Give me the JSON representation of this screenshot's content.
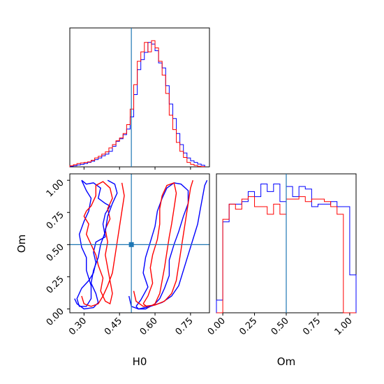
{
  "colors": {
    "series_a": "#0000ff",
    "series_b": "#ff0000",
    "truth": "#1f77b4",
    "axes": "#000000"
  },
  "chart_data": [
    {
      "type": "histogram",
      "panel": "top-left",
      "parameter": "H0",
      "xlim": [
        0.24,
        0.83
      ],
      "truth": 0.5,
      "show_y_ticks": false,
      "x_ticks_labeled": false,
      "bin_edges": [
        0.24,
        0.255,
        0.27,
        0.285,
        0.3,
        0.315,
        0.33,
        0.345,
        0.36,
        0.375,
        0.39,
        0.405,
        0.42,
        0.435,
        0.45,
        0.465,
        0.48,
        0.495,
        0.51,
        0.525,
        0.54,
        0.555,
        0.57,
        0.585,
        0.6,
        0.615,
        0.63,
        0.645,
        0.66,
        0.675,
        0.69,
        0.705,
        0.72,
        0.735,
        0.75,
        0.765,
        0.78,
        0.795,
        0.81
      ],
      "series": [
        {
          "color": "blue",
          "values": [
            0.2,
            0.4,
            0.7,
            0.9,
            1.2,
            1.6,
            2.0,
            2.6,
            3.2,
            4.0,
            4.6,
            5.6,
            7.4,
            9.2,
            10.1,
            11.6,
            13.6,
            18.0,
            26.0,
            35.0,
            38.6,
            41.2,
            44.8,
            44.2,
            41.8,
            37.4,
            35.6,
            29.2,
            22.6,
            17.4,
            12.0,
            8.0,
            5.0,
            3.2,
            2.2,
            1.6,
            1.0,
            0.6
          ]
        },
        {
          "color": "red",
          "values": [
            0.4,
            0.8,
            1.2,
            1.4,
            1.6,
            1.8,
            2.4,
            3.2,
            3.8,
            4.6,
            5.4,
            6.8,
            8.0,
            9.4,
            10.4,
            12.0,
            15.2,
            20.8,
            29.6,
            38.0,
            41.4,
            44.8,
            41.4,
            45.4,
            42.8,
            38.0,
            33.0,
            26.4,
            18.6,
            13.4,
            8.8,
            5.6,
            3.4,
            1.6,
            0.9,
            0.5,
            0.2,
            0.1
          ]
        }
      ]
    },
    {
      "type": "contour",
      "panel": "bottom-left",
      "xparam": "H0",
      "yparam": "Om",
      "xlabel": "H0",
      "ylabel": "Om",
      "xlim": [
        0.24,
        0.83
      ],
      "ylim": [
        -0.03,
        1.05
      ],
      "xticks": [
        "0.30",
        "0.45",
        "0.60",
        "0.75"
      ],
      "xtick_values": [
        0.3,
        0.45,
        0.6,
        0.75
      ],
      "yticks": [
        "0.00",
        "0.25",
        "0.50",
        "0.75",
        "1.00"
      ],
      "ytick_values": [
        0.0,
        0.25,
        0.5,
        0.75,
        1.0
      ],
      "truth": {
        "x": 0.5,
        "y": 0.5
      },
      "contours": [
        {
          "color": "blue",
          "points": [
            [
              0.29,
              1.0
            ],
            [
              0.31,
              0.97
            ],
            [
              0.34,
              0.98
            ],
            [
              0.37,
              0.94
            ],
            [
              0.36,
              0.86
            ],
            [
              0.39,
              0.82
            ],
            [
              0.41,
              0.8
            ],
            [
              0.39,
              0.74
            ],
            [
              0.38,
              0.66
            ],
            [
              0.39,
              0.56
            ],
            [
              0.35,
              0.52
            ],
            [
              0.34,
              0.44
            ],
            [
              0.35,
              0.36
            ],
            [
              0.34,
              0.28
            ],
            [
              0.32,
              0.22
            ],
            [
              0.29,
              0.16
            ],
            [
              0.27,
              0.08
            ],
            [
              0.28,
              0.02
            ],
            [
              0.31,
              0.02
            ],
            [
              0.33,
              0.08
            ],
            [
              0.33,
              0.18
            ],
            [
              0.31,
              0.3
            ],
            [
              0.31,
              0.4
            ],
            [
              0.29,
              0.48
            ],
            [
              0.28,
              0.58
            ],
            [
              0.3,
              0.68
            ],
            [
              0.32,
              0.76
            ],
            [
              0.33,
              0.86
            ],
            [
              0.31,
              0.92
            ],
            [
              0.29,
              1.0
            ]
          ]
        },
        {
          "color": "blue",
          "points": [
            [
              0.52,
              0.02
            ],
            [
              0.54,
              0.07
            ],
            [
              0.57,
              0.17
            ],
            [
              0.55,
              0.28
            ],
            [
              0.56,
              0.4
            ],
            [
              0.58,
              0.52
            ],
            [
              0.6,
              0.64
            ],
            [
              0.61,
              0.76
            ],
            [
              0.63,
              0.86
            ],
            [
              0.65,
              0.94
            ],
            [
              0.68,
              0.98
            ],
            [
              0.71,
              0.97
            ],
            [
              0.74,
              0.92
            ],
            [
              0.74,
              0.82
            ],
            [
              0.72,
              0.72
            ],
            [
              0.7,
              0.6
            ],
            [
              0.68,
              0.5
            ],
            [
              0.66,
              0.38
            ],
            [
              0.66,
              0.26
            ],
            [
              0.64,
              0.16
            ],
            [
              0.62,
              0.08
            ],
            [
              0.6,
              0.04
            ],
            [
              0.56,
              0.0
            ],
            [
              0.53,
              0.0
            ],
            [
              0.52,
              0.02
            ]
          ]
        },
        {
          "color": "red",
          "points": [
            [
              0.31,
              0.76
            ],
            [
              0.3,
              0.72
            ],
            [
              0.32,
              0.66
            ],
            [
              0.31,
              0.58
            ],
            [
              0.33,
              0.5
            ],
            [
              0.35,
              0.42
            ],
            [
              0.36,
              0.34
            ],
            [
              0.38,
              0.24
            ],
            [
              0.37,
              0.14
            ],
            [
              0.39,
              0.06
            ],
            [
              0.41,
              0.04
            ],
            [
              0.42,
              0.12
            ],
            [
              0.41,
              0.22
            ],
            [
              0.4,
              0.32
            ],
            [
              0.39,
              0.42
            ],
            [
              0.4,
              0.52
            ],
            [
              0.39,
              0.62
            ],
            [
              0.41,
              0.7
            ],
            [
              0.4,
              0.78
            ],
            [
              0.42,
              0.86
            ],
            [
              0.41,
              0.94
            ],
            [
              0.38,
              0.99
            ],
            [
              0.35,
              0.96
            ],
            [
              0.35,
              0.88
            ],
            [
              0.33,
              0.8
            ],
            [
              0.31,
              0.76
            ]
          ]
        },
        {
          "color": "red",
          "points": [
            [
              0.55,
              0.04
            ],
            [
              0.57,
              0.1
            ],
            [
              0.59,
              0.2
            ],
            [
              0.58,
              0.32
            ],
            [
              0.59,
              0.42
            ],
            [
              0.61,
              0.54
            ],
            [
              0.62,
              0.66
            ],
            [
              0.62,
              0.78
            ],
            [
              0.63,
              0.88
            ],
            [
              0.65,
              0.96
            ],
            [
              0.68,
              0.98
            ],
            [
              0.69,
              0.9
            ],
            [
              0.68,
              0.78
            ],
            [
              0.67,
              0.66
            ],
            [
              0.66,
              0.56
            ],
            [
              0.65,
              0.44
            ],
            [
              0.64,
              0.32
            ],
            [
              0.63,
              0.22
            ],
            [
              0.62,
              0.12
            ],
            [
              0.6,
              0.04
            ],
            [
              0.57,
              0.01
            ],
            [
              0.55,
              0.04
            ]
          ]
        },
        {
          "color": "blue",
          "points": [
            [
              0.26,
              0.08
            ],
            [
              0.27,
              0.04
            ],
            [
              0.3,
              0.0
            ],
            [
              0.34,
              0.01
            ],
            [
              0.36,
              0.05
            ],
            [
              0.35,
              0.12
            ],
            [
              0.33,
              0.2
            ],
            [
              0.34,
              0.3
            ],
            [
              0.36,
              0.4
            ],
            [
              0.37,
              0.5
            ],
            [
              0.39,
              0.6
            ],
            [
              0.4,
              0.72
            ],
            [
              0.42,
              0.82
            ],
            [
              0.44,
              0.9
            ],
            [
              0.43,
              0.97
            ],
            [
              0.4,
              1.0
            ]
          ]
        },
        {
          "color": "blue",
          "points": [
            [
              0.49,
              0.1
            ],
            [
              0.5,
              0.02
            ],
            [
              0.53,
              0.0
            ],
            [
              0.58,
              0.02
            ],
            [
              0.63,
              0.05
            ],
            [
              0.67,
              0.1
            ],
            [
              0.7,
              0.18
            ],
            [
              0.72,
              0.3
            ],
            [
              0.74,
              0.42
            ],
            [
              0.76,
              0.54
            ],
            [
              0.78,
              0.66
            ],
            [
              0.79,
              0.76
            ],
            [
              0.8,
              0.86
            ],
            [
              0.81,
              0.96
            ],
            [
              0.82,
              1.0
            ]
          ]
        },
        {
          "color": "red",
          "points": [
            [
              0.29,
              0.1
            ],
            [
              0.3,
              0.04
            ],
            [
              0.33,
              0.02
            ],
            [
              0.36,
              0.04
            ],
            [
              0.38,
              0.1
            ],
            [
              0.4,
              0.18
            ],
            [
              0.42,
              0.28
            ],
            [
              0.43,
              0.4
            ],
            [
              0.44,
              0.52
            ],
            [
              0.45,
              0.64
            ],
            [
              0.46,
              0.76
            ],
            [
              0.47,
              0.88
            ],
            [
              0.46,
              0.98
            ]
          ]
        },
        {
          "color": "red",
          "points": [
            [
              0.51,
              0.14
            ],
            [
              0.52,
              0.06
            ],
            [
              0.55,
              0.02
            ],
            [
              0.6,
              0.03
            ],
            [
              0.64,
              0.06
            ],
            [
              0.67,
              0.12
            ],
            [
              0.69,
              0.22
            ],
            [
              0.7,
              0.34
            ],
            [
              0.71,
              0.46
            ],
            [
              0.72,
              0.58
            ],
            [
              0.73,
              0.7
            ],
            [
              0.74,
              0.82
            ],
            [
              0.75,
              0.94
            ],
            [
              0.76,
              1.0
            ]
          ]
        }
      ]
    },
    {
      "type": "histogram",
      "panel": "bottom-right",
      "parameter": "Om",
      "xlabel": "Om",
      "xlim": [
        -0.05,
        1.05
      ],
      "truth": 0.5,
      "show_y_ticks": false,
      "xticks": [
        "0.00",
        "0.25",
        "0.50",
        "0.75",
        "1.00"
      ],
      "xtick_values": [
        0.0,
        0.25,
        0.5,
        0.75,
        1.0
      ],
      "bin_edges": [
        -0.05,
        0.0,
        0.05,
        0.1,
        0.15,
        0.2,
        0.25,
        0.3,
        0.35,
        0.4,
        0.45,
        0.5,
        0.55,
        0.6,
        0.65,
        0.7,
        0.75,
        0.8,
        0.85,
        0.9,
        0.95,
        1.0,
        1.05
      ],
      "series": [
        {
          "color": "blue",
          "values": [
            1.0,
            7.2,
            8.6,
            8.6,
            8.8,
            9.6,
            9.2,
            10.2,
            9.6,
            10.2,
            8.8,
            10.0,
            9.2,
            10.0,
            9.8,
            8.4,
            8.6,
            8.6,
            8.8,
            8.4,
            8.4,
            3.0
          ]
        },
        {
          "color": "red",
          "values": [
            0.0,
            7.4,
            8.6,
            8.2,
            9.0,
            9.2,
            8.4,
            8.4,
            7.8,
            8.6,
            7.8,
            9.0,
            9.0,
            9.2,
            8.8,
            9.0,
            9.0,
            8.8,
            8.4,
            7.8,
            0.0,
            0.0
          ]
        }
      ]
    }
  ]
}
